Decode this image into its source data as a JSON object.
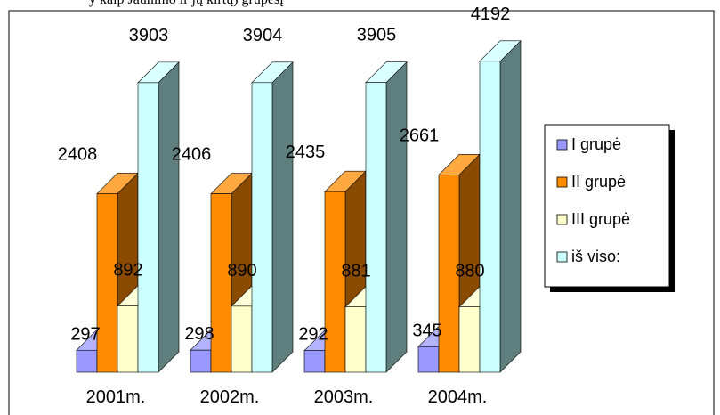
{
  "header_text": "y kaip Jaunimo ir jų kirtų) grupėsį",
  "chart_data": {
    "type": "bar",
    "categories": [
      "2001m.",
      "2002m.",
      "2003m.",
      "2004m."
    ],
    "series": [
      {
        "name": "I grupė",
        "values": [
          297,
          298,
          292,
          345
        ],
        "color": "#9999ff",
        "side_color": "#4c4c80"
      },
      {
        "name": "II grupė",
        "values": [
          2408,
          2406,
          2435,
          2661
        ],
        "color": "#ff8c00",
        "side_color": "#8a4b00"
      },
      {
        "name": "III grupė",
        "values": [
          892,
          890,
          881,
          880
        ],
        "color": "#ffffcc",
        "side_color": "#8a8a6e"
      },
      {
        "name": "iš viso:",
        "values": [
          3903,
          3904,
          3905,
          4192
        ],
        "color": "#ccffff",
        "side_color": "#5f7f7f"
      }
    ],
    "ylim": [
      0,
      4400
    ],
    "legend_position": "right",
    "three_d": true
  }
}
